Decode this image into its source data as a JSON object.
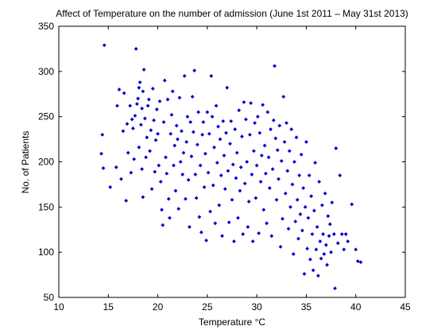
{
  "chart_data": {
    "type": "scatter",
    "title": "Affect of Temperature on the number of admission (June 1st 2011 – May 31st 2013)",
    "xlabel": "Temperature °C",
    "ylabel": "No. of Patients",
    "xlim": [
      10,
      45
    ],
    "ylim": [
      50,
      350
    ],
    "xticks": [
      10,
      15,
      20,
      25,
      30,
      35,
      40,
      45
    ],
    "yticks": [
      50,
      100,
      150,
      200,
      250,
      300,
      350
    ],
    "grid": false,
    "marker_color": "#0000cc",
    "marker": "diamond",
    "series": [
      {
        "points": [
          [
            14.3,
            209
          ],
          [
            14.4,
            230
          ],
          [
            14.5,
            193
          ],
          [
            14.6,
            329
          ],
          [
            15.2,
            172
          ],
          [
            15.8,
            194
          ],
          [
            15.9,
            262
          ],
          [
            16.1,
            280
          ],
          [
            16.3,
            181
          ],
          [
            16.5,
            234
          ],
          [
            16.6,
            276
          ],
          [
            16.8,
            157
          ],
          [
            16.9,
            242
          ],
          [
            17.0,
            210
          ],
          [
            17.2,
            262
          ],
          [
            17.3,
            188
          ],
          [
            17.4,
            247
          ],
          [
            17.5,
            237
          ],
          [
            17.6,
            203
          ],
          [
            17.7,
            251
          ],
          [
            17.8,
            325
          ],
          [
            17.9,
            264
          ],
          [
            18.0,
            270
          ],
          [
            18.1,
            282
          ],
          [
            18.1,
            216
          ],
          [
            18.2,
            288
          ],
          [
            18.3,
            241
          ],
          [
            18.4,
            259
          ],
          [
            18.4,
            192
          ],
          [
            18.5,
            278
          ],
          [
            18.5,
            161
          ],
          [
            18.6,
            302
          ],
          [
            18.7,
            248
          ],
          [
            18.8,
            205
          ],
          [
            18.9,
            227
          ],
          [
            19.0,
            262
          ],
          [
            19.1,
            269
          ],
          [
            19.2,
            212
          ],
          [
            19.3,
            235
          ],
          [
            19.4,
            170
          ],
          [
            19.5,
            281
          ],
          [
            19.6,
            246
          ],
          [
            19.7,
            189
          ],
          [
            19.8,
            224
          ],
          [
            19.9,
            258
          ],
          [
            20.0,
            231
          ],
          [
            20.1,
            196
          ],
          [
            20.2,
            267
          ],
          [
            20.3,
            178
          ],
          [
            20.4,
            147
          ],
          [
            20.5,
            130
          ],
          [
            20.6,
            244
          ],
          [
            20.7,
            290
          ],
          [
            20.8,
            205
          ],
          [
            20.9,
            187
          ],
          [
            21.0,
            269
          ],
          [
            21.1,
            159
          ],
          [
            21.2,
            138
          ],
          [
            21.3,
            231
          ],
          [
            21.4,
            252
          ],
          [
            21.5,
            278
          ],
          [
            21.6,
            196
          ],
          [
            21.7,
            218
          ],
          [
            21.8,
            168
          ],
          [
            21.9,
            240
          ],
          [
            22.0,
            225
          ],
          [
            22.1,
            148
          ],
          [
            22.2,
            271
          ],
          [
            22.3,
            200
          ],
          [
            22.4,
            234
          ],
          [
            22.5,
            186
          ],
          [
            22.6,
            210
          ],
          [
            22.7,
            295
          ],
          [
            22.8,
            159
          ],
          [
            22.9,
            222
          ],
          [
            23.0,
            250
          ],
          [
            23.1,
            180
          ],
          [
            23.2,
            128
          ],
          [
            23.3,
            244
          ],
          [
            23.4,
            206
          ],
          [
            23.5,
            272
          ],
          [
            23.6,
            233
          ],
          [
            23.7,
            301
          ],
          [
            23.8,
            186
          ],
          [
            23.9,
            160
          ],
          [
            24.0,
            219
          ],
          [
            24.1,
            255
          ],
          [
            24.2,
            139
          ],
          [
            24.3,
            196
          ],
          [
            24.4,
            122
          ],
          [
            24.5,
            230
          ],
          [
            24.6,
            244
          ],
          [
            24.7,
            172
          ],
          [
            24.8,
            209
          ],
          [
            24.9,
            113
          ],
          [
            25.0,
            255
          ],
          [
            25.1,
            188
          ],
          [
            25.2,
            231
          ],
          [
            25.3,
            145
          ],
          [
            25.4,
            295
          ],
          [
            25.5,
            250
          ],
          [
            25.6,
            174
          ],
          [
            25.7,
            216
          ],
          [
            25.8,
            132
          ],
          [
            25.9,
            262
          ],
          [
            26.0,
            199
          ],
          [
            26.1,
            239
          ],
          [
            26.2,
            152
          ],
          [
            26.3,
            225
          ],
          [
            26.4,
            185
          ],
          [
            26.5,
            118
          ],
          [
            26.6,
            245
          ],
          [
            26.7,
            207
          ],
          [
            26.8,
            170
          ],
          [
            26.9,
            232
          ],
          [
            27.0,
            282
          ],
          [
            27.1,
            190
          ],
          [
            27.2,
            133
          ],
          [
            27.3,
            220
          ],
          [
            27.4,
            245
          ],
          [
            27.5,
            158
          ],
          [
            27.6,
            197
          ],
          [
            27.7,
            112
          ],
          [
            27.8,
            236
          ],
          [
            27.9,
            182
          ],
          [
            28.0,
            210
          ],
          [
            28.1,
            138
          ],
          [
            28.2,
            257
          ],
          [
            28.3,
            168
          ],
          [
            28.4,
            194
          ],
          [
            28.5,
            228
          ],
          [
            28.6,
            120
          ],
          [
            28.7,
            266
          ],
          [
            28.8,
            176
          ],
          [
            28.9,
            247
          ],
          [
            29.0,
            200
          ],
          [
            29.1,
            128
          ],
          [
            29.2,
            156
          ],
          [
            29.3,
            230
          ],
          [
            29.4,
            265
          ],
          [
            29.5,
            186
          ],
          [
            29.6,
            112
          ],
          [
            29.7,
            212
          ],
          [
            29.8,
            243
          ],
          [
            29.9,
            160
          ],
          [
            30.0,
            196
          ],
          [
            30.1,
            250
          ],
          [
            30.2,
            121
          ],
          [
            30.3,
            232
          ],
          [
            30.4,
            178
          ],
          [
            30.5,
            207
          ],
          [
            30.6,
            263
          ],
          [
            30.7,
            147
          ],
          [
            30.8,
            218
          ],
          [
            30.9,
            187
          ],
          [
            31.0,
            132
          ],
          [
            31.1,
            255
          ],
          [
            31.2,
            205
          ],
          [
            31.3,
            171
          ],
          [
            31.4,
            236
          ],
          [
            31.5,
            118
          ],
          [
            31.6,
            192
          ],
          [
            31.7,
            246
          ],
          [
            31.8,
            306
          ],
          [
            31.9,
            226
          ],
          [
            32.0,
            158
          ],
          [
            32.1,
            213
          ],
          [
            32.2,
            181
          ],
          [
            32.3,
            240
          ],
          [
            32.4,
            106
          ],
          [
            32.5,
            201
          ],
          [
            32.6,
            137
          ],
          [
            32.7,
            272
          ],
          [
            32.8,
            222
          ],
          [
            32.9,
            165
          ],
          [
            33.0,
            243
          ],
          [
            33.1,
            190
          ],
          [
            33.2,
            126
          ],
          [
            33.3,
            212
          ],
          [
            33.4,
            150
          ],
          [
            33.5,
            236
          ],
          [
            33.6,
            175
          ],
          [
            33.7,
            98
          ],
          [
            33.8,
            200
          ],
          [
            33.9,
            134
          ],
          [
            34.0,
            227
          ],
          [
            34.1,
            158
          ],
          [
            34.2,
            115
          ],
          [
            34.3,
            185
          ],
          [
            34.4,
            142
          ],
          [
            34.5,
            208
          ],
          [
            34.6,
            124
          ],
          [
            34.7,
            171
          ],
          [
            34.8,
            76
          ],
          [
            34.9,
            150
          ],
          [
            35.0,
            222
          ],
          [
            35.1,
            104
          ],
          [
            35.2,
            138
          ],
          [
            35.3,
            185
          ],
          [
            35.4,
            92
          ],
          [
            35.5,
            162
          ],
          [
            35.6,
            120
          ],
          [
            35.7,
            80
          ],
          [
            35.8,
            146
          ],
          [
            35.9,
            199
          ],
          [
            36.0,
            103
          ],
          [
            36.1,
            128
          ],
          [
            36.2,
            74
          ],
          [
            36.3,
            178
          ],
          [
            36.4,
            112
          ],
          [
            36.5,
            93
          ],
          [
            36.6,
            152
          ],
          [
            36.7,
            120
          ],
          [
            36.8,
            98
          ],
          [
            36.9,
            165
          ],
          [
            37.0,
            108
          ],
          [
            37.1,
            86
          ],
          [
            37.2,
            140
          ],
          [
            37.3,
            118
          ],
          [
            37.4,
            131
          ],
          [
            37.5,
            100
          ],
          [
            37.6,
            155
          ],
          [
            37.8,
            120
          ],
          [
            37.9,
            60
          ],
          [
            38.0,
            215
          ],
          [
            38.2,
            110
          ],
          [
            38.4,
            185
          ],
          [
            38.6,
            120
          ],
          [
            38.8,
            103
          ],
          [
            39.0,
            120
          ],
          [
            39.2,
            112
          ],
          [
            39.6,
            153
          ],
          [
            40.0,
            103
          ],
          [
            40.2,
            90
          ],
          [
            40.5,
            89
          ]
        ]
      }
    ]
  }
}
